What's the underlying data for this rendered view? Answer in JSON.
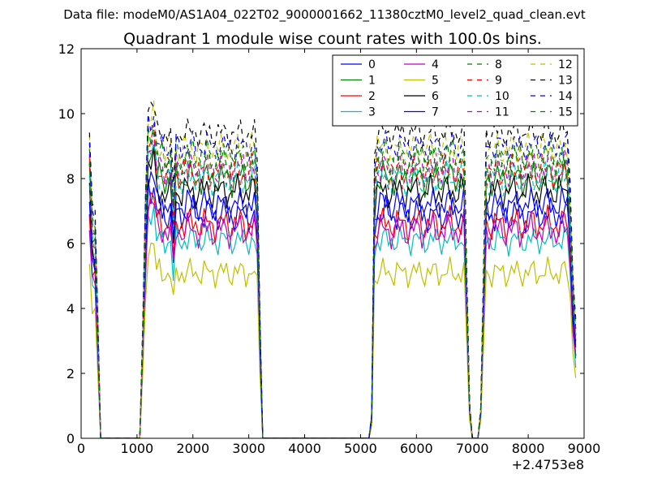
{
  "chart_data": {
    "type": "line",
    "suptitle": "Data file: modeM0/AS1A04_022T02_9000001662_11380cztM0_level2_quad_clean.evt",
    "title": "Quadrant 1 module wise count rates with 100.0s bins.",
    "xlabel": "",
    "ylabel": "",
    "x_offset_label": "+2.4753e8",
    "xlim": [
      0,
      9000
    ],
    "ylim": [
      0,
      12
    ],
    "x_ticks": [
      0,
      1000,
      2000,
      3000,
      4000,
      5000,
      6000,
      7000,
      8000,
      9000
    ],
    "y_ticks": [
      0,
      2,
      4,
      6,
      8,
      10,
      12
    ],
    "legend_position": "top-right",
    "legend_columns": 4,
    "x": [
      150,
      200,
      250,
      300,
      350,
      450,
      1050,
      1100,
      1150,
      1200,
      1250,
      1300,
      1350,
      1400,
      1450,
      1500,
      1550,
      1600,
      1650,
      1700,
      1750,
      1800,
      1850,
      1900,
      1950,
      2000,
      2050,
      2100,
      2150,
      2200,
      2250,
      2300,
      2350,
      2400,
      2450,
      2500,
      2550,
      2600,
      2650,
      2700,
      2750,
      2800,
      2850,
      2900,
      2950,
      3000,
      3050,
      3100,
      3150,
      3200,
      3250,
      3300,
      3400,
      5100,
      5150,
      5200,
      5250,
      5300,
      5350,
      5400,
      5450,
      5500,
      5550,
      5600,
      5650,
      5700,
      5750,
      5800,
      5850,
      5900,
      5950,
      6000,
      6050,
      6100,
      6150,
      6200,
      6250,
      6300,
      6350,
      6400,
      6450,
      6500,
      6550,
      6600,
      6650,
      6700,
      6750,
      6800,
      6850,
      6900,
      6950,
      7000,
      7050,
      7100,
      7150,
      7200,
      7250,
      7300,
      7350,
      7400,
      7450,
      7500,
      7550,
      7600,
      7650,
      7700,
      7750,
      7800,
      7850,
      7900,
      7950,
      8000,
      8050,
      8100,
      8150,
      8200,
      8250,
      8300,
      8350,
      8400,
      8450,
      8500,
      8550,
      8600,
      8650,
      8700,
      8750,
      8800,
      8850
    ],
    "series": [
      {
        "name": "0",
        "color": "#0000ff",
        "dash": "solid",
        "level": 6.9,
        "spread": 0.6,
        "phase": 0
      },
      {
        "name": "1",
        "color": "#008000",
        "dash": "solid",
        "level": 8.0,
        "spread": 0.6,
        "phase": 1.3
      },
      {
        "name": "2",
        "color": "#ff0000",
        "dash": "solid",
        "level": 6.6,
        "spread": 0.6,
        "phase": 2.1
      },
      {
        "name": "3",
        "color": "#00bfbf",
        "dash": "solid",
        "level": 6.1,
        "spread": 0.5,
        "phase": 0.7
      },
      {
        "name": "4",
        "color": "#bf00bf",
        "dash": "solid",
        "level": 6.4,
        "spread": 0.6,
        "phase": 3.0
      },
      {
        "name": "5",
        "color": "#bfbf00",
        "dash": "solid",
        "level": 5.1,
        "spread": 0.5,
        "phase": 1.9
      },
      {
        "name": "6",
        "color": "#000000",
        "dash": "solid",
        "level": 7.6,
        "spread": 0.6,
        "phase": 4.2
      },
      {
        "name": "7",
        "color": "#0000ff",
        "dash": "solid",
        "level": 7.2,
        "spread": 0.6,
        "phase": 2.6
      },
      {
        "name": "8",
        "color": "#008000",
        "dash": "dashed",
        "level": 8.7,
        "spread": 0.6,
        "phase": 0.4
      },
      {
        "name": "9",
        "color": "#ff0000",
        "dash": "dashed",
        "level": 8.2,
        "spread": 0.6,
        "phase": 5.1
      },
      {
        "name": "10",
        "color": "#00bfbf",
        "dash": "dashed",
        "level": 8.0,
        "spread": 0.6,
        "phase": 3.7
      },
      {
        "name": "11",
        "color": "#bf00bf",
        "dash": "dashed",
        "level": 8.3,
        "spread": 0.6,
        "phase": 1.1
      },
      {
        "name": "12",
        "color": "#bfbf00",
        "dash": "dashed",
        "level": 8.9,
        "spread": 0.6,
        "phase": 4.8
      },
      {
        "name": "13",
        "color": "#000000",
        "dash": "dashed",
        "level": 9.4,
        "spread": 0.5,
        "phase": 2.9
      },
      {
        "name": "14",
        "color": "#0000ff",
        "dash": "dashed",
        "level": 9.0,
        "spread": 0.5,
        "phase": 0.2
      },
      {
        "name": "15",
        "color": "#008000",
        "dash": "dashed",
        "level": 8.5,
        "spread": 0.6,
        "phase": 3.3
      }
    ]
  }
}
